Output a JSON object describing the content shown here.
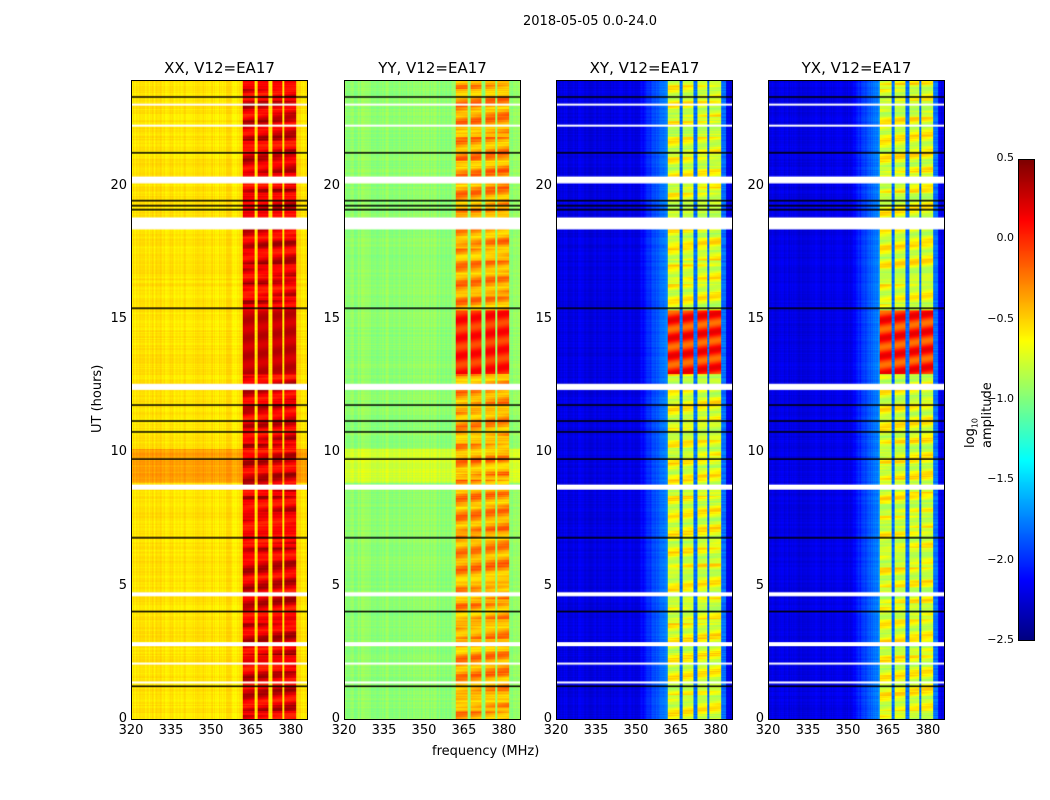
{
  "chart_data": {
    "type": "heatmap",
    "title": "2018-05-05 0.0-24.0",
    "xlabel": "frequency (MHz)",
    "ylabel": "UT (hours)",
    "xlim": [
      320,
      386.4
    ],
    "ylim": [
      0,
      24
    ],
    "xticks": [
      "320",
      "335",
      "350",
      "365",
      "380"
    ],
    "yticks": [
      "0",
      "5",
      "10",
      "15",
      "20"
    ],
    "colorbar": {
      "label_main": "log",
      "label_sub": "10",
      "label_rest": " amplitude",
      "range": [
        -2.5,
        0.5
      ],
      "ticks": [
        "0.5",
        "0.0",
        "−0.5",
        "−1.0",
        "−1.5",
        "−2.0",
        "−2.5"
      ],
      "colormap": "jet"
    },
    "rfi_bands_mhz": [
      [
        362,
        366.5
      ],
      [
        367.6,
        371.7
      ],
      [
        372.9,
        377
      ],
      [
        377.7,
        382.2
      ]
    ],
    "flagged_hours_white": [
      [
        20.15,
        20.41
      ],
      [
        18.42,
        18.87
      ],
      [
        12.38,
        12.61
      ],
      [
        8.63,
        8.82
      ],
      [
        4.62,
        4.77
      ],
      [
        2.74,
        2.89
      ],
      [
        2.07,
        2.12
      ],
      [
        1.36,
        1.41
      ],
      [
        23.1,
        23.15
      ],
      [
        22.3,
        22.36
      ]
    ],
    "black_line_hours": [
      23.41,
      21.31,
      19.51,
      19.32,
      19.17,
      15.46,
      11.82,
      11.22,
      10.81,
      9.79,
      6.83,
      4.05,
      1.24
    ],
    "panels": [
      {
        "title": "XX, V12=EA17",
        "base_log_amp": -0.55,
        "band_log_amp": 0.05,
        "peak_hours": [
          13,
          15.4
        ],
        "peak_log_amp": 0.35
      },
      {
        "title": "YY, V12=EA17",
        "base_log_amp": -0.95,
        "band_log_amp": -0.5,
        "peak_hours": [
          13,
          15.4
        ],
        "peak_log_amp": 0.15
      },
      {
        "title": "XY, V12=EA17",
        "base_log_amp": -2.2,
        "band_log_amp": -0.85,
        "peak_hours": [
          13,
          15.4
        ],
        "peak_log_amp": 0.2
      },
      {
        "title": "YX, V12=EA17",
        "base_log_amp": -2.2,
        "band_log_amp": -0.85,
        "peak_hours": [
          13,
          15.4
        ],
        "peak_log_amp": 0.2
      }
    ]
  }
}
